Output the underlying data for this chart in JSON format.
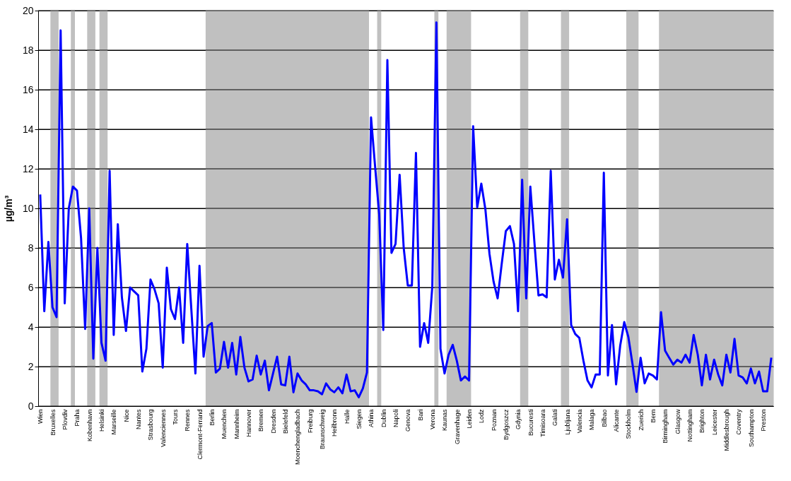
{
  "chart_data": {
    "type": "line",
    "ylabel": "µg/m³",
    "categories": [
      "Wien",
      null,
      null,
      "Bruxelles",
      null,
      null,
      "Plovdiv",
      null,
      null,
      "Praha",
      null,
      null,
      "Kobenhavn",
      null,
      null,
      "Helsinki",
      null,
      null,
      "Marseille",
      null,
      null,
      "Nice",
      null,
      null,
      "Nantes",
      null,
      null,
      "Strasbourg",
      null,
      null,
      "Valenciennes",
      null,
      null,
      "Tours",
      null,
      null,
      "Rennes",
      null,
      null,
      "Clermont-Ferrand",
      null,
      null,
      "Berlin",
      null,
      null,
      "Muenchen",
      null,
      null,
      "Mannheim",
      null,
      null,
      "Hannover",
      null,
      null,
      "Bremen",
      null,
      null,
      "Dresden",
      null,
      null,
      "Bielefeld",
      null,
      null,
      "Moenchengladbach",
      null,
      null,
      "Freiburg",
      null,
      null,
      "Braunschweig",
      null,
      null,
      "Heilbronn",
      null,
      null,
      "Halle",
      null,
      null,
      "Siegen",
      null,
      null,
      "Athina",
      null,
      null,
      "Dublin",
      null,
      null,
      "Napoli",
      null,
      null,
      "Genova",
      null,
      null,
      "Bari",
      null,
      null,
      "Verona",
      null,
      null,
      "Kaunas",
      null,
      null,
      "Gravenhage",
      null,
      null,
      "Leiden",
      null,
      null,
      "Lodz",
      null,
      null,
      "Poznan",
      null,
      null,
      "Bydgoszcz",
      null,
      null,
      "Gdynia",
      null,
      null,
      "Bucuresti",
      null,
      null,
      "Timisoara",
      null,
      null,
      "Galati",
      null,
      null,
      "Ljubljana",
      null,
      null,
      "Valencia",
      null,
      null,
      "Malaga",
      null,
      null,
      "Bilbao",
      null,
      null,
      "Alicante",
      null,
      null,
      "Stockholm",
      null,
      null,
      "Zuerich",
      null,
      null,
      "Bern",
      null,
      null,
      "Birmingham",
      null,
      null,
      "Glasgow",
      null,
      null,
      "Nottingham",
      null,
      null,
      "Brighton",
      null,
      null,
      "Leicester",
      null,
      null,
      "Middlesbrough",
      null,
      null,
      "Coventry",
      null,
      null,
      "Southampton",
      null,
      null,
      "Preston",
      null,
      null
    ],
    "series": [
      {
        "color": "#0000ff",
        "values": [
          10.7,
          4.8,
          8.3,
          5.0,
          4.5,
          19.0,
          5.2,
          10.0,
          11.1,
          10.9,
          8.5,
          3.9,
          10.0,
          2.4,
          8.0,
          3.2,
          2.3,
          11.9,
          3.6,
          9.2,
          5.5,
          3.8,
          6.0,
          5.8,
          5.6,
          1.75,
          2.9,
          6.4,
          5.9,
          5.2,
          1.95,
          7.0,
          4.9,
          4.4,
          6.0,
          3.2,
          8.2,
          4.9,
          1.65,
          7.1,
          2.5,
          4.05,
          4.2,
          1.7,
          1.9,
          3.25,
          1.95,
          3.2,
          1.6,
          3.5,
          1.95,
          1.25,
          1.35,
          2.55,
          1.6,
          2.3,
          0.8,
          1.65,
          2.5,
          1.1,
          1.05,
          2.5,
          0.7,
          1.65,
          1.3,
          1.1,
          0.8,
          0.8,
          0.75,
          0.6,
          1.15,
          0.85,
          0.7,
          0.95,
          0.65,
          1.6,
          0.75,
          0.8,
          0.45,
          0.9,
          1.7,
          14.6,
          12.1,
          9.7,
          3.85,
          17.5,
          7.75,
          8.2,
          11.7,
          8.0,
          6.1,
          6.1,
          12.8,
          3.0,
          4.2,
          3.2,
          6.05,
          19.4,
          2.9,
          1.65,
          2.6,
          3.1,
          2.3,
          1.3,
          1.5,
          1.3,
          14.15,
          10.05,
          11.25,
          9.95,
          7.7,
          6.3,
          5.45,
          7.2,
          8.85,
          9.1,
          8.2,
          4.8,
          11.45,
          5.45,
          11.1,
          8.3,
          5.6,
          5.65,
          5.5,
          11.9,
          6.4,
          7.4,
          6.5,
          9.45,
          4.1,
          3.65,
          3.45,
          2.3,
          1.3,
          0.95,
          1.6,
          1.6,
          11.8,
          1.55,
          4.1,
          1.1,
          3.05,
          4.25,
          3.5,
          2.15,
          0.72,
          2.45,
          1.15,
          1.65,
          1.55,
          1.35,
          4.75,
          2.8,
          2.45,
          2.1,
          2.35,
          2.2,
          2.6,
          2.2,
          3.6,
          2.6,
          1.05,
          2.6,
          1.35,
          2.35,
          1.6,
          1.05,
          2.6,
          1.7,
          3.4,
          1.55,
          1.45,
          1.15,
          1.9,
          1.15,
          1.75,
          0.75,
          0.75,
          2.45
        ]
      }
    ],
    "ylim": [
      0,
      20
    ],
    "yticks": [
      0,
      2,
      4,
      6,
      8,
      10,
      12,
      14,
      16,
      18,
      20
    ],
    "grid": "y",
    "marker": "none",
    "line_style": "solid"
  }
}
